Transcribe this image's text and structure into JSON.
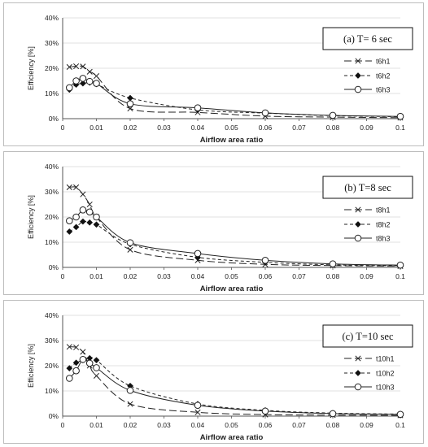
{
  "chart_data": [
    {
      "type": "line",
      "title": "(a) T= 6 sec",
      "xlabel": "Airflow area ratio",
      "ylabel": "Efficiency [%]",
      "xlim": [
        0,
        0.1
      ],
      "ylim": [
        0,
        40
      ],
      "xticks": [
        "0",
        "0.01",
        "0.02",
        "0.03",
        "0.04",
        "0.05",
        "0.06",
        "0.07",
        "0.08",
        "0.09",
        "0.1"
      ],
      "yticks": [
        "0%",
        "10%",
        "20%",
        "30%",
        "40%"
      ],
      "legend_position": "right",
      "series": [
        {
          "name": "t6h1",
          "marker": "x",
          "dash": "long-dash",
          "x": [
            0.002,
            0.004,
            0.006,
            0.008,
            0.01,
            0.02,
            0.04,
            0.06,
            0.08,
            0.1
          ],
          "y": [
            20.5,
            20.8,
            20.7,
            18.6,
            16.9,
            4.0,
            2.5,
            1.0,
            0.6,
            0.4
          ]
        },
        {
          "name": "t6h2",
          "marker": "diamond-filled",
          "dash": "short-dash",
          "x": [
            0.002,
            0.004,
            0.006,
            0.008,
            0.01,
            0.02,
            0.04,
            0.06,
            0.08,
            0.1
          ],
          "y": [
            11.5,
            13.5,
            14.0,
            14.3,
            13.7,
            8.2,
            3.5,
            2.2,
            1.2,
            0.8
          ]
        },
        {
          "name": "t6h3",
          "marker": "circle-open",
          "dash": "solid",
          "x": [
            0.002,
            0.004,
            0.006,
            0.008,
            0.01,
            0.02,
            0.04,
            0.06,
            0.08,
            0.1
          ],
          "y": [
            12.3,
            15.0,
            16.0,
            14.8,
            14.0,
            5.9,
            4.3,
            2.3,
            1.3,
            0.9
          ]
        }
      ]
    },
    {
      "type": "line",
      "title": "(b) T=8 sec",
      "xlabel": "Airflow area ratio",
      "ylabel": "Efficiency [%]",
      "xlim": [
        0,
        0.1
      ],
      "ylim": [
        0,
        40
      ],
      "xticks": [
        "0",
        "0.01",
        "0.02",
        "0.03",
        "0.04",
        "0.05",
        "0.06",
        "0.07",
        "0.08",
        "0.09",
        "0.1"
      ],
      "yticks": [
        "0%",
        "10%",
        "20%",
        "30%",
        "40%"
      ],
      "legend_position": "right",
      "series": [
        {
          "name": "t8h1",
          "marker": "x",
          "dash": "long-dash",
          "x": [
            0.002,
            0.004,
            0.006,
            0.008,
            0.01,
            0.02,
            0.04,
            0.06,
            0.08,
            0.1
          ],
          "y": [
            31.8,
            31.8,
            29.0,
            25.0,
            20.0,
            7.0,
            2.8,
            1.2,
            0.7,
            0.5
          ]
        },
        {
          "name": "t8h2",
          "marker": "diamond-filled",
          "dash": "short-dash",
          "x": [
            0.002,
            0.004,
            0.006,
            0.008,
            0.01,
            0.02,
            0.04,
            0.06,
            0.08,
            0.1
          ],
          "y": [
            14.2,
            16.0,
            18.2,
            17.8,
            17.0,
            9.2,
            4.0,
            2.0,
            1.0,
            0.6
          ]
        },
        {
          "name": "t8h3",
          "marker": "circle-open",
          "dash": "solid",
          "x": [
            0.002,
            0.004,
            0.006,
            0.008,
            0.01,
            0.02,
            0.04,
            0.06,
            0.08,
            0.1
          ],
          "y": [
            18.5,
            20.0,
            22.8,
            22.0,
            20.0,
            9.8,
            5.5,
            2.8,
            1.4,
            0.9
          ]
        }
      ]
    },
    {
      "type": "line",
      "title": "(c) T=10 sec",
      "xlabel": "Airflow area ratio",
      "ylabel": "Efficiency [%]",
      "xlim": [
        0,
        0.1
      ],
      "ylim": [
        0,
        40
      ],
      "xticks": [
        "0",
        "0.01",
        "0.02",
        "0.03",
        "0.04",
        "0.05",
        "0.06",
        "0.07",
        "0.08",
        "0.09",
        "0.1"
      ],
      "yticks": [
        "0%",
        "10%",
        "20%",
        "30%",
        "40%"
      ],
      "legend_position": "right",
      "series": [
        {
          "name": "t10h1",
          "marker": "x",
          "dash": "long-dash",
          "x": [
            0.002,
            0.004,
            0.006,
            0.008,
            0.01,
            0.02,
            0.04,
            0.06,
            0.08,
            0.1
          ],
          "y": [
            27.5,
            27.3,
            25.5,
            20.0,
            16.0,
            4.8,
            1.5,
            0.6,
            0.4,
            0.3
          ]
        },
        {
          "name": "t10h2",
          "marker": "diamond-filled",
          "dash": "short-dash",
          "x": [
            0.002,
            0.004,
            0.006,
            0.008,
            0.01,
            0.02,
            0.04,
            0.06,
            0.08,
            0.1
          ],
          "y": [
            19.0,
            21.2,
            22.2,
            23.0,
            22.2,
            12.0,
            4.8,
            2.3,
            1.2,
            0.8
          ]
        },
        {
          "name": "t10h3",
          "marker": "circle-open",
          "dash": "solid",
          "x": [
            0.002,
            0.004,
            0.006,
            0.008,
            0.01,
            0.02,
            0.04,
            0.06,
            0.08,
            0.1
          ],
          "y": [
            15.0,
            18.0,
            22.5,
            21.0,
            19.2,
            10.2,
            4.3,
            2.0,
            1.0,
            0.7
          ]
        }
      ]
    }
  ]
}
